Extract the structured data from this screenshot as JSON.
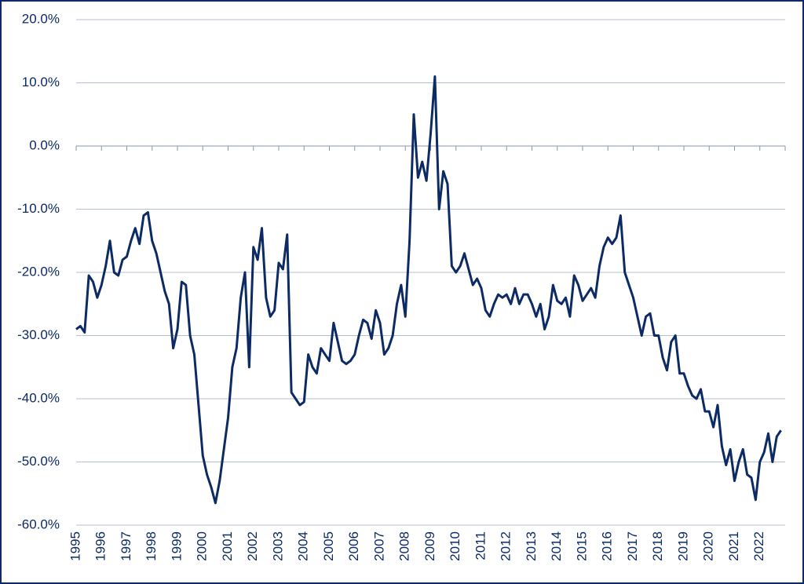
{
  "chart_data": {
    "type": "line",
    "categories": [
      "1995",
      null,
      null,
      null,
      null,
      null,
      "1996",
      null,
      null,
      null,
      null,
      null,
      "1997",
      null,
      null,
      null,
      null,
      null,
      "1998",
      null,
      null,
      null,
      null,
      null,
      "1999",
      null,
      null,
      null,
      null,
      null,
      "2000",
      null,
      null,
      null,
      null,
      null,
      "2001",
      null,
      null,
      null,
      null,
      null,
      "2002",
      null,
      null,
      null,
      null,
      null,
      "2003",
      null,
      null,
      null,
      null,
      null,
      "2004",
      null,
      null,
      null,
      null,
      null,
      "2005",
      null,
      null,
      null,
      null,
      null,
      "2006",
      null,
      null,
      null,
      null,
      null,
      "2007",
      null,
      null,
      null,
      null,
      null,
      "2008",
      null,
      null,
      null,
      null,
      null,
      "2009",
      null,
      null,
      null,
      null,
      null,
      "2010",
      null,
      null,
      null,
      null,
      null,
      "2011",
      null,
      null,
      null,
      null,
      null,
      "2012",
      null,
      null,
      null,
      null,
      null,
      "2013",
      null,
      null,
      null,
      null,
      null,
      "2014",
      null,
      null,
      null,
      null,
      null,
      "2015",
      null,
      null,
      null,
      null,
      null,
      "2016",
      null,
      null,
      null,
      null,
      null,
      "2017",
      null,
      null,
      null,
      null,
      null,
      "2018",
      null,
      null,
      null,
      null,
      null,
      "2019",
      null,
      null,
      null,
      null,
      null,
      "2020",
      null,
      null,
      null,
      null,
      null,
      "2021",
      null,
      null,
      null,
      null,
      null,
      "2022",
      null,
      null,
      null,
      null,
      null
    ],
    "series": [
      {
        "color": "#0c2a63",
        "values": [
          -29,
          -28.5,
          -29.5,
          -20.5,
          -21.5,
          -24,
          -22,
          -19,
          -15,
          -20,
          -20.5,
          -18,
          -17.5,
          -15,
          -13,
          -15.5,
          -11,
          -10.5,
          -15,
          -17,
          -20,
          -23,
          -25,
          -32,
          -29,
          -21.5,
          -22,
          -30,
          -33,
          -41,
          -49,
          -52,
          -54,
          -56.5,
          -53,
          -48,
          -43,
          -35,
          -32,
          -24,
          -20,
          -35,
          -16,
          -18,
          -13,
          -24,
          -27,
          -26,
          -18.5,
          -19.5,
          -14,
          -39,
          -40,
          -41,
          -40.5,
          -33,
          -35,
          -36,
          -32,
          -33,
          -34,
          -28,
          -31,
          -34,
          -34.5,
          -34,
          -33,
          -30,
          -27.5,
          -28,
          -30.5,
          -26,
          -28,
          -33,
          -32,
          -30,
          -25,
          -22,
          -27,
          -15,
          5,
          -5,
          -2.5,
          -5.5,
          2,
          11,
          -10,
          -4,
          -6,
          -19,
          -20,
          -19,
          -17,
          -19.5,
          -22,
          -21,
          -22.5,
          -26,
          -27,
          -25,
          -23.5,
          -24,
          -23.5,
          -25,
          -22.5,
          -25,
          -23.5,
          -23.5,
          -25,
          -27,
          -25,
          -29,
          -27,
          -22,
          -24.5,
          -25,
          -24,
          -27,
          -20.5,
          -22,
          -24.5,
          -23.5,
          -22.5,
          -24,
          -19,
          -16,
          -14.5,
          -15.5,
          -14.5,
          -11,
          -20,
          -22,
          -24,
          -27,
          -30,
          -27,
          -26.5,
          -30,
          -30,
          -33.5,
          -35.5,
          -31,
          -30,
          -36,
          -36,
          -38,
          -39.5,
          -40,
          -38.5,
          -42,
          -42,
          -44.5,
          -41,
          -47.5,
          -50.5,
          -48,
          -53,
          -50,
          -48,
          -52,
          -52.5,
          -56,
          -50,
          -48.5,
          -45.5,
          -50,
          -46,
          -45
        ]
      }
    ],
    "ylim": [
      -60,
      20
    ],
    "yticks": [
      {
        "value": -60,
        "label": "-60.0%"
      },
      {
        "value": -50,
        "label": "-50.0%"
      },
      {
        "value": -40,
        "label": "-40.0%"
      },
      {
        "value": -30,
        "label": "-30.0%"
      },
      {
        "value": -20,
        "label": "-20.0%"
      },
      {
        "value": -10,
        "label": "-10.0%"
      },
      {
        "value": 0,
        "label": "0.0%"
      },
      {
        "value": 10,
        "label": "10.0%"
      },
      {
        "value": 20,
        "label": "20.0%"
      }
    ],
    "grid": true
  }
}
